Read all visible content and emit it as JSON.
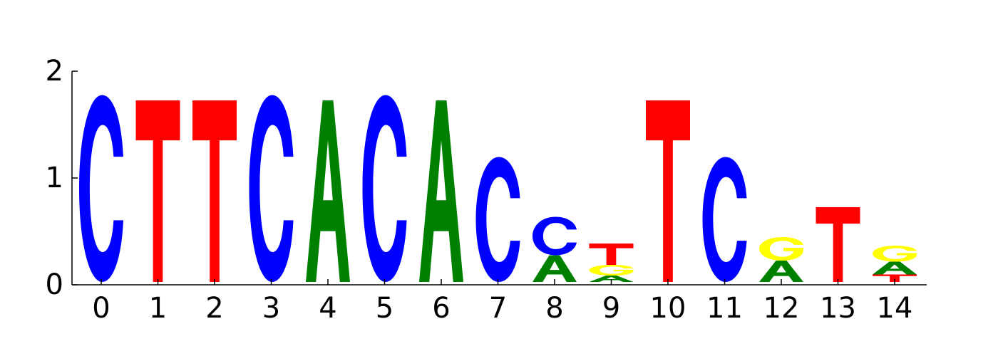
{
  "chart_data": {
    "type": "sequence-logo",
    "title": "",
    "xlabel": "",
    "ylabel": "",
    "ylim": [
      0,
      2
    ],
    "y_ticks": [
      "0",
      "1",
      "2"
    ],
    "x_ticks": [
      "0",
      "1",
      "2",
      "3",
      "4",
      "5",
      "6",
      "7",
      "8",
      "9",
      "10",
      "11",
      "12",
      "13",
      "14"
    ],
    "colors": {
      "A": "#008000",
      "C": "#0000ff",
      "G": "#ffff00",
      "T": "#ff0000"
    },
    "positions": [
      {
        "pos": "0",
        "letters": [
          {
            "base": "C",
            "height": 1.75
          }
        ]
      },
      {
        "pos": "1",
        "letters": [
          {
            "base": "T",
            "height": 1.7
          }
        ]
      },
      {
        "pos": "2",
        "letters": [
          {
            "base": "T",
            "height": 1.7
          }
        ]
      },
      {
        "pos": "3",
        "letters": [
          {
            "base": "C",
            "height": 1.75
          }
        ]
      },
      {
        "pos": "4",
        "letters": [
          {
            "base": "A",
            "height": 1.7
          }
        ]
      },
      {
        "pos": "5",
        "letters": [
          {
            "base": "C",
            "height": 1.75
          }
        ]
      },
      {
        "pos": "6",
        "letters": [
          {
            "base": "A",
            "height": 1.7
          }
        ]
      },
      {
        "pos": "7",
        "letters": [
          {
            "base": "C",
            "height": 1.17
          }
        ]
      },
      {
        "pos": "8",
        "letters": [
          {
            "base": "A",
            "height": 0.25
          },
          {
            "base": "C",
            "height": 0.36
          }
        ]
      },
      {
        "pos": "9",
        "letters": [
          {
            "base": "A",
            "height": 0.06
          },
          {
            "base": "G",
            "height": 0.1
          },
          {
            "base": "T",
            "height": 0.2
          }
        ]
      },
      {
        "pos": "10",
        "letters": [
          {
            "base": "T",
            "height": 1.7
          }
        ]
      },
      {
        "pos": "11",
        "letters": [
          {
            "base": "C",
            "height": 1.17
          }
        ]
      },
      {
        "pos": "12",
        "letters": [
          {
            "base": "A",
            "height": 0.2
          },
          {
            "base": "G",
            "height": 0.22
          }
        ]
      },
      {
        "pos": "13",
        "letters": [
          {
            "base": "T",
            "height": 0.7
          }
        ]
      },
      {
        "pos": "14",
        "letters": [
          {
            "base": "T",
            "height": 0.07
          },
          {
            "base": "A",
            "height": 0.12
          },
          {
            "base": "G",
            "height": 0.15
          }
        ]
      }
    ]
  }
}
